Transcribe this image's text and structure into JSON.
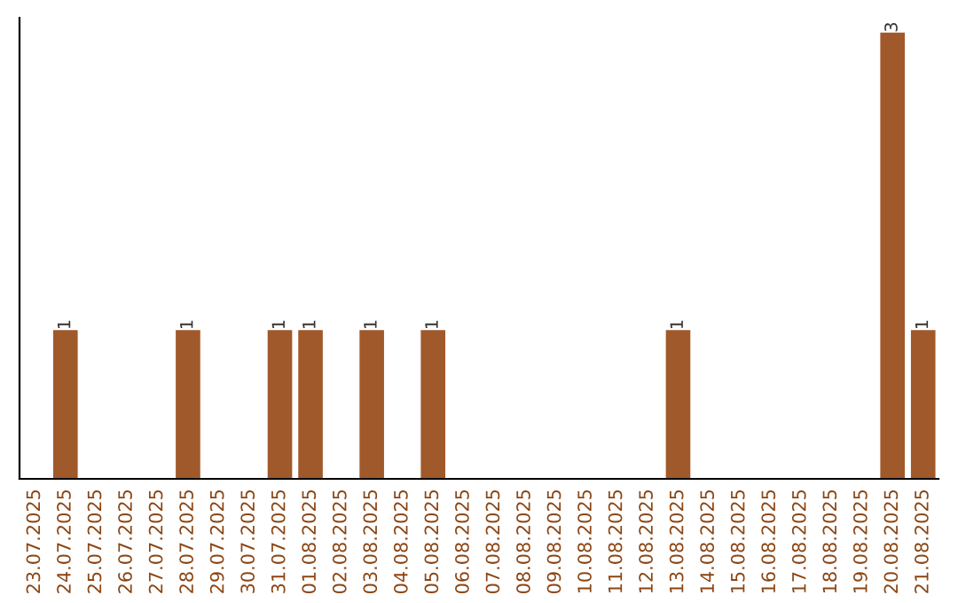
{
  "chart_data": {
    "type": "bar",
    "categories": [
      "23.07.2025",
      "24.07.2025",
      "25.07.2025",
      "26.07.2025",
      "27.07.2025",
      "28.07.2025",
      "29.07.2025",
      "30.07.2025",
      "31.07.2025",
      "01.08.2025",
      "02.08.2025",
      "03.08.2025",
      "04.08.2025",
      "05.08.2025",
      "06.08.2025",
      "07.08.2025",
      "08.08.2025",
      "09.08.2025",
      "10.08.2025",
      "11.08.2025",
      "12.08.2025",
      "13.08.2025",
      "14.08.2025",
      "15.08.2025",
      "16.08.2025",
      "17.08.2025",
      "18.08.2025",
      "19.08.2025",
      "20.08.2025",
      "21.08.2025"
    ],
    "values": [
      0,
      1,
      0,
      0,
      0,
      1,
      0,
      0,
      1,
      1,
      0,
      1,
      0,
      1,
      0,
      0,
      0,
      0,
      0,
      0,
      0,
      1,
      0,
      0,
      0,
      0,
      0,
      0,
      3,
      1
    ],
    "color": "#a0592a",
    "ylim": [
      0,
      3.1
    ],
    "tick_labels": "x",
    "value_labels": [
      null,
      "1",
      null,
      null,
      null,
      "1",
      null,
      null,
      "1",
      "1",
      null,
      "1",
      null,
      "1",
      null,
      null,
      null,
      null,
      null,
      null,
      null,
      "1",
      null,
      null,
      null,
      null,
      null,
      null,
      "3",
      "1"
    ],
    "grid": false
  }
}
